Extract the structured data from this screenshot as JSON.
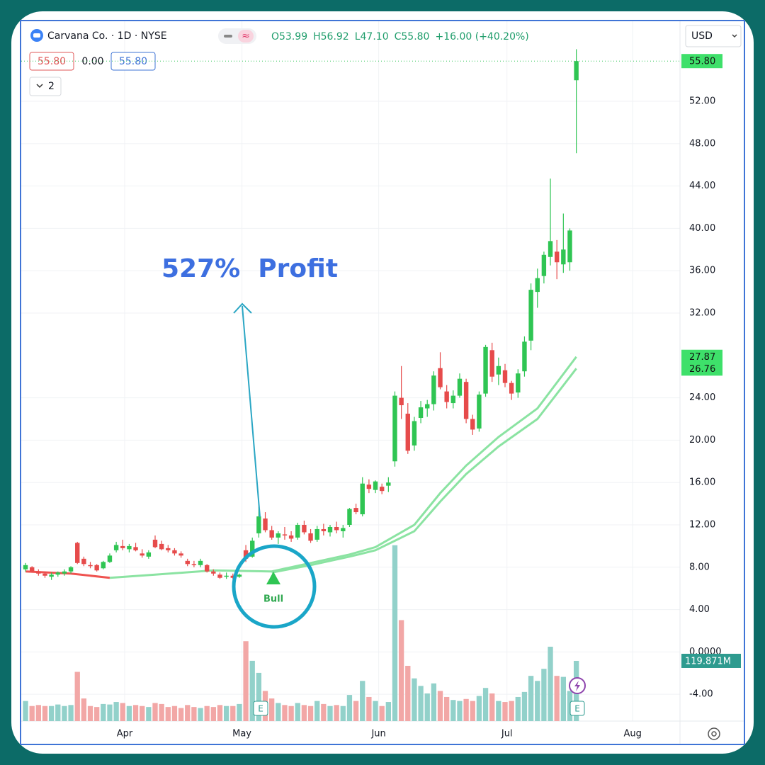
{
  "chart_data": {
    "type": "candlestick",
    "title": "Carvana Co. · 1D · NYSE",
    "header_items": [
      "O53.99",
      "H56.92",
      "L47.10",
      "C55.80",
      "+16.00 (+40.20%)"
    ],
    "indicator_values": [
      "55.80",
      "0.00",
      "55.80"
    ],
    "indicator_count": "2",
    "currency": "USD",
    "annotations": [
      "527%  Profit",
      "Bull"
    ],
    "earnings_markers": [
      "E",
      "E"
    ],
    "last_price_label": "55.80",
    "ma_labels": [
      "27.87",
      "26.76"
    ],
    "volume_label": "119.871M",
    "open": [
      7.8,
      8.0,
      7.6,
      7.4,
      7.1,
      7.3,
      7.4,
      7.6,
      10.3,
      8.8,
      8.2,
      8.2,
      7.9,
      8.5,
      9.6,
      10.0,
      9.7,
      9.9,
      9.3,
      9.0,
      10.6,
      10.2,
      9.8,
      9.6,
      9.3,
      8.6,
      8.3,
      8.2,
      8.2,
      7.6,
      7.3,
      7.1,
      7.2,
      7.1,
      9.6,
      9.0,
      11.2,
      12.6,
      11.5,
      10.8,
      11.1,
      11.0,
      10.8,
      12.0,
      11.2,
      10.6,
      11.6,
      11.3,
      11.8,
      11.4,
      12.0,
      13.6,
      13.0,
      15.8,
      15.3,
      15.6,
      15.7,
      18.0,
      24.0,
      22.5,
      19.5,
      22.1,
      23.0,
      23.4,
      26.8,
      24.6,
      23.5,
      24.2,
      25.5,
      22.0,
      21.1,
      24.4,
      28.5,
      26.2,
      26.6,
      25.4,
      24.5,
      26.5,
      29.4,
      34.0,
      35.5,
      37.3,
      37.8,
      36.6,
      36.8,
      53.99
    ],
    "high": [
      8.4,
      8.1,
      7.8,
      7.6,
      7.5,
      7.6,
      7.8,
      8.1,
      10.4,
      9.0,
      8.5,
      8.3,
      8.6,
      9.3,
      10.4,
      10.6,
      10.2,
      10.3,
      9.7,
      9.6,
      11.0,
      10.5,
      10.1,
      9.8,
      9.5,
      8.8,
      8.6,
      8.8,
      8.3,
      7.8,
      7.5,
      7.5,
      7.4,
      7.4,
      10.1,
      10.8,
      13.7,
      13.2,
      11.9,
      11.4,
      11.8,
      11.4,
      12.2,
      12.4,
      11.6,
      11.9,
      12.1,
      12.0,
      12.3,
      12.0,
      13.6,
      14.0,
      16.5,
      16.3,
      16.2,
      15.9,
      16.5,
      24.6,
      27.0,
      23.5,
      22.2,
      23.7,
      23.8,
      26.5,
      28.3,
      25.2,
      24.7,
      26.3,
      25.8,
      22.4,
      24.6,
      29.0,
      29.2,
      27.8,
      27.2,
      25.6,
      26.7,
      29.8,
      34.8,
      36.2,
      37.8,
      44.7,
      38.9,
      41.4,
      40.0,
      56.92
    ],
    "low": [
      7.6,
      7.5,
      7.2,
      7.0,
      6.8,
      7.1,
      7.2,
      7.4,
      8.3,
      8.1,
      7.9,
      7.6,
      7.8,
      8.4,
      9.4,
      9.6,
      9.4,
      9.5,
      8.9,
      8.8,
      9.8,
      9.6,
      9.4,
      9.1,
      8.9,
      8.1,
      8.0,
      8.0,
      7.5,
      7.2,
      6.9,
      6.9,
      6.9,
      7.0,
      8.5,
      8.9,
      10.8,
      11.3,
      10.6,
      10.2,
      10.6,
      10.4,
      10.6,
      11.1,
      10.3,
      10.4,
      11.0,
      10.9,
      11.2,
      10.8,
      11.8,
      13.0,
      12.8,
      15.0,
      15.0,
      14.9,
      15.1,
      17.5,
      22.0,
      18.7,
      19.0,
      21.6,
      22.2,
      22.8,
      24.8,
      23.0,
      23.0,
      24.0,
      21.6,
      20.5,
      20.8,
      24.1,
      25.5,
      25.2,
      25.0,
      23.8,
      24.0,
      26.0,
      28.5,
      32.5,
      34.8,
      36.5,
      35.2,
      35.8,
      36.0,
      47.1
    ],
    "close": [
      8.2,
      7.6,
      7.4,
      7.2,
      7.3,
      7.5,
      7.6,
      8.0,
      8.4,
      8.3,
      8.1,
      7.7,
      8.5,
      9.1,
      10.1,
      9.8,
      10.0,
      9.6,
      9.1,
      9.4,
      9.9,
      9.7,
      9.6,
      9.3,
      9.1,
      8.3,
      8.2,
      8.6,
      7.6,
      7.4,
      7.0,
      7.2,
      7.0,
      7.3,
      8.8,
      10.5,
      12.8,
      11.5,
      10.8,
      11.2,
      11.0,
      10.7,
      12.0,
      11.3,
      10.5,
      11.6,
      11.4,
      11.8,
      11.5,
      11.7,
      13.5,
      13.2,
      15.9,
      15.4,
      16.1,
      15.2,
      16.0,
      24.2,
      23.3,
      19.0,
      21.8,
      23.1,
      23.4,
      26.1,
      25.0,
      23.6,
      24.2,
      25.8,
      22.0,
      21.0,
      24.3,
      28.8,
      26.0,
      27.0,
      25.4,
      24.4,
      26.3,
      29.3,
      34.2,
      35.3,
      37.5,
      38.8,
      36.8,
      38.0,
      39.8,
      55.8
    ],
    "volume": [
      40,
      30,
      32,
      30,
      30,
      33,
      30,
      32,
      98,
      45,
      30,
      28,
      34,
      33,
      38,
      36,
      30,
      32,
      30,
      28,
      36,
      34,
      28,
      30,
      26,
      32,
      28,
      26,
      30,
      28,
      32,
      30,
      30,
      34,
      159,
      120,
      96,
      60,
      45,
      36,
      32,
      30,
      36,
      32,
      30,
      40,
      34,
      30,
      32,
      30,
      52,
      40,
      80,
      48,
      40,
      30,
      38,
      350,
      201,
      110,
      85,
      70,
      55,
      75,
      60,
      48,
      42,
      40,
      44,
      40,
      50,
      66,
      55,
      40,
      38,
      40,
      48,
      58,
      90,
      80,
      104,
      148,
      90,
      88,
      60,
      119.871
    ],
    "up_color": "#2fc553",
    "down_color": "#e64b4b",
    "volume_up_color": "#92d1ca",
    "volume_down_color": "#f2a7a6",
    "lines": [
      {
        "x": [
          0,
          7,
          13
        ],
        "values": [
          7.6,
          7.4,
          7.0
        ],
        "color": "#ef5350"
      },
      {
        "x": [
          13,
          20,
          29,
          38,
          44,
          50,
          54,
          60,
          64,
          68,
          73,
          79,
          85
        ],
        "values": [
          7.0,
          7.3,
          7.7,
          7.6,
          8.4,
          9.2,
          9.9,
          12.0,
          15.0,
          17.6,
          20.3,
          23.0,
          27.87
        ],
        "color": "#8be3a2"
      },
      {
        "x": [
          38,
          44,
          50,
          54,
          60,
          64,
          68,
          73,
          79,
          85
        ],
        "values": [
          7.5,
          8.2,
          9.0,
          9.6,
          11.4,
          14.2,
          16.8,
          19.4,
          22.0,
          26.76
        ],
        "color": "#8be3a2"
      }
    ],
    "xlim": [
      -0.66,
      101
    ],
    "xticks": [
      {
        "value": 15.3,
        "label": "Apr"
      },
      {
        "value": 33.4,
        "label": "May"
      },
      {
        "value": 54.5,
        "label": "Jun"
      },
      {
        "value": 74.3,
        "label": "Jul"
      },
      {
        "value": 93.7,
        "label": "Aug"
      }
    ],
    "ylim": [
      -6.53,
      59.56
    ],
    "yticks": [
      {
        "value": 52,
        "label": "52.00"
      },
      {
        "value": 48,
        "label": "48.00"
      },
      {
        "value": 44,
        "label": "44.00"
      },
      {
        "value": 40,
        "label": "40.00"
      },
      {
        "value": 36,
        "label": "36.00"
      },
      {
        "value": 32,
        "label": "32.00"
      },
      {
        "value": 24,
        "label": "24.00"
      },
      {
        "value": 20,
        "label": "20.00"
      },
      {
        "value": 16,
        "label": "16.00"
      },
      {
        "value": 12,
        "label": "12.00"
      },
      {
        "value": 8,
        "label": "8.00"
      },
      {
        "value": 4,
        "label": "4.00"
      },
      {
        "value": 0,
        "label": "0.0000"
      },
      {
        "value": -4,
        "label": "-4.00"
      }
    ],
    "y2lim": [
      0,
      1393
    ],
    "grid": true
  }
}
